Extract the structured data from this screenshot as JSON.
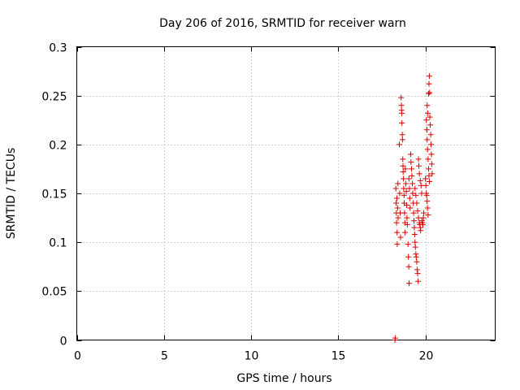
{
  "chart_data": {
    "type": "scatter",
    "title": "Day 206 of 2016, SRMTID for receiver warn",
    "xlabel": "GPS time / hours",
    "ylabel": "SRMTID / TECUs",
    "xlim": [
      0,
      24
    ],
    "ylim": [
      0,
      0.3
    ],
    "x_ticks": [
      0,
      5,
      10,
      15,
      20
    ],
    "y_ticks": [
      0,
      0.05,
      0.1,
      0.15,
      0.2,
      0.25,
      0.3
    ],
    "x_tick_labels": [
      "0",
      "5",
      "10",
      "15",
      "20"
    ],
    "y_tick_labels": [
      "0",
      "0.05",
      "0.1",
      "0.15",
      "0.2",
      "0.25",
      "0.3"
    ],
    "grid": true,
    "marker": "+",
    "color": "#dd0000",
    "series": [
      {
        "name": "SRMTID",
        "points": [
          [
            18.25,
            0.0
          ],
          [
            18.27,
            0.002
          ],
          [
            18.3,
            0.155
          ],
          [
            18.32,
            0.14
          ],
          [
            18.33,
            0.13
          ],
          [
            18.34,
            0.12
          ],
          [
            18.36,
            0.145
          ],
          [
            18.37,
            0.11
          ],
          [
            18.38,
            0.098
          ],
          [
            18.4,
            0.135
          ],
          [
            18.42,
            0.16
          ],
          [
            18.43,
            0.125
          ],
          [
            18.5,
            0.2
          ],
          [
            18.52,
            0.15
          ],
          [
            18.55,
            0.13
          ],
          [
            18.57,
            0.105
          ],
          [
            18.6,
            0.248
          ],
          [
            18.62,
            0.24
          ],
          [
            18.63,
            0.235
          ],
          [
            18.64,
            0.232
          ],
          [
            18.65,
            0.222
          ],
          [
            18.67,
            0.21
          ],
          [
            18.68,
            0.205
          ],
          [
            18.7,
            0.185
          ],
          [
            18.71,
            0.178
          ],
          [
            18.72,
            0.172
          ],
          [
            18.74,
            0.165
          ],
          [
            18.75,
            0.155
          ],
          [
            18.77,
            0.148
          ],
          [
            18.78,
            0.14
          ],
          [
            18.8,
            0.13
          ],
          [
            18.82,
            0.12
          ],
          [
            18.83,
            0.11
          ],
          [
            18.85,
            0.175
          ],
          [
            18.87,
            0.16
          ],
          [
            18.9,
            0.152
          ],
          [
            18.92,
            0.138
          ],
          [
            18.94,
            0.125
          ],
          [
            18.96,
            0.118
          ],
          [
            19.0,
            0.098
          ],
          [
            19.02,
            0.085
          ],
          [
            19.04,
            0.075
          ],
          [
            19.06,
            0.058
          ],
          [
            19.05,
            0.165
          ],
          [
            19.08,
            0.155
          ],
          [
            19.1,
            0.145
          ],
          [
            19.12,
            0.135
          ],
          [
            19.15,
            0.19
          ],
          [
            19.17,
            0.182
          ],
          [
            19.2,
            0.175
          ],
          [
            19.22,
            0.168
          ],
          [
            19.25,
            0.16
          ],
          [
            19.27,
            0.15
          ],
          [
            19.3,
            0.14
          ],
          [
            19.32,
            0.13
          ],
          [
            19.34,
            0.122
          ],
          [
            19.36,
            0.115
          ],
          [
            19.38,
            0.108
          ],
          [
            19.4,
            0.1
          ],
          [
            19.42,
            0.095
          ],
          [
            19.45,
            0.088
          ],
          [
            19.47,
            0.085
          ],
          [
            19.5,
            0.08
          ],
          [
            19.52,
            0.072
          ],
          [
            19.55,
            0.068
          ],
          [
            19.58,
            0.06
          ],
          [
            19.4,
            0.155
          ],
          [
            19.45,
            0.148
          ],
          [
            19.5,
            0.14
          ],
          [
            19.55,
            0.132
          ],
          [
            19.6,
            0.125
          ],
          [
            19.65,
            0.12
          ],
          [
            19.68,
            0.118
          ],
          [
            19.7,
            0.115
          ],
          [
            19.72,
            0.112
          ],
          [
            19.6,
            0.185
          ],
          [
            19.62,
            0.178
          ],
          [
            19.65,
            0.17
          ],
          [
            19.7,
            0.163
          ],
          [
            19.75,
            0.158
          ],
          [
            19.78,
            0.15
          ],
          [
            19.8,
            0.122
          ],
          [
            19.82,
            0.12
          ],
          [
            19.85,
            0.118
          ],
          [
            19.88,
            0.125
          ],
          [
            19.9,
            0.13
          ],
          [
            20.0,
            0.165
          ],
          [
            20.02,
            0.158
          ],
          [
            20.05,
            0.15
          ],
          [
            20.07,
            0.148
          ],
          [
            20.1,
            0.142
          ],
          [
            20.12,
            0.135
          ],
          [
            20.15,
            0.128
          ],
          [
            20.05,
            0.225
          ],
          [
            20.08,
            0.215
          ],
          [
            20.1,
            0.205
          ],
          [
            20.12,
            0.195
          ],
          [
            20.15,
            0.185
          ],
          [
            20.18,
            0.175
          ],
          [
            20.2,
            0.168
          ],
          [
            20.22,
            0.162
          ],
          [
            20.1,
            0.24
          ],
          [
            20.13,
            0.232
          ],
          [
            20.18,
            0.252
          ],
          [
            20.2,
            0.262
          ],
          [
            20.22,
            0.27
          ],
          [
            20.24,
            0.253
          ],
          [
            20.25,
            0.228
          ],
          [
            20.27,
            0.22
          ],
          [
            20.3,
            0.21
          ],
          [
            20.32,
            0.2
          ],
          [
            20.34,
            0.19
          ],
          [
            20.36,
            0.18
          ],
          [
            20.38,
            0.17
          ]
        ]
      }
    ]
  }
}
